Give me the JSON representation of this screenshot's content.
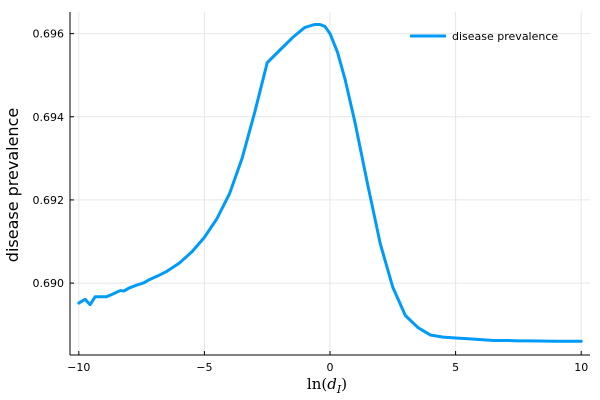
{
  "chart_data": {
    "type": "line",
    "xlabel": "ln(d_I)",
    "ylabel": "disease prevalence",
    "xlim": [
      -10.35,
      10.35
    ],
    "ylim": [
      0.68827,
      0.69652
    ],
    "x_ticks": [
      -10,
      -5,
      0,
      5,
      10
    ],
    "x_tick_labels": [
      "−10",
      "−5",
      "0",
      "5",
      "10"
    ],
    "y_ticks": [
      0.69,
      0.692,
      0.694,
      0.696
    ],
    "y_tick_labels": [
      "0.690",
      "0.692",
      "0.694",
      "0.696"
    ],
    "grid": true,
    "legend_position": "top-right",
    "series": [
      {
        "name": "disease prevalence",
        "color": "#009af9",
        "x": [
          -10.0,
          -9.75,
          -9.55,
          -9.35,
          -9.1,
          -8.9,
          -8.6,
          -8.35,
          -8.2,
          -8.0,
          -7.7,
          -7.4,
          -7.2,
          -6.9,
          -6.5,
          -6.0,
          -5.5,
          -5.0,
          -4.5,
          -4.0,
          -3.5,
          -3.0,
          -2.5,
          -2.0,
          -1.5,
          -1.0,
          -0.6,
          -0.4,
          -0.2,
          0.0,
          0.3,
          0.6,
          1.0,
          1.5,
          2.0,
          2.5,
          3.0,
          3.5,
          4.0,
          4.5,
          5.0,
          5.5,
          6.0,
          6.5,
          7.0,
          7.5,
          8.0,
          9.0,
          10.0
        ],
        "values": [
          0.68952,
          0.68961,
          0.68948,
          0.68967,
          0.68967,
          0.68967,
          0.68975,
          0.68982,
          0.68981,
          0.68988,
          0.68995,
          0.69001,
          0.69008,
          0.69016,
          0.69028,
          0.69048,
          0.69075,
          0.6911,
          0.69155,
          0.69215,
          0.693,
          0.6941,
          0.6953,
          0.6956,
          0.6959,
          0.69615,
          0.69622,
          0.69622,
          0.69617,
          0.696,
          0.69555,
          0.6949,
          0.69385,
          0.69237,
          0.69095,
          0.6899,
          0.68922,
          0.68893,
          0.68875,
          0.6887,
          0.68868,
          0.68866,
          0.68864,
          0.68862,
          0.68862,
          0.68861,
          0.68861,
          0.6886,
          0.6886
        ]
      }
    ]
  }
}
